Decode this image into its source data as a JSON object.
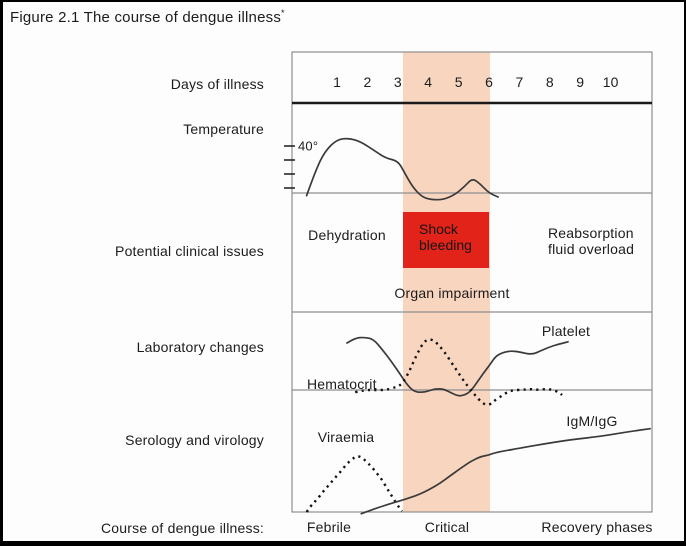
{
  "title": "Figure 2.1 The course of dengue illness",
  "title_superscript": "*",
  "row_labels": {
    "days": "Days of illness",
    "temperature": "Temperature",
    "clinical": "Potential clinical issues",
    "laboratory": "Laboratory changes",
    "serology": "Serology and virology",
    "course": "Course of dengue illness:"
  },
  "days": [
    "1",
    "2",
    "3",
    "4",
    "5",
    "6",
    "7",
    "8",
    "9",
    "10"
  ],
  "clinical": {
    "dehydration": "Dehydration",
    "shock_line1": "Shock",
    "shock_line2": "bleeding",
    "reabsorption_line1": "Reabsorption",
    "reabsorption_line2": "fluid overload",
    "organ": "Organ impairment"
  },
  "laboratory": {
    "platelet": "Platelet",
    "hematocrit": "Hematocrit"
  },
  "serology": {
    "viraemia": "Viraemia",
    "igm_igg": "IgM/IgG"
  },
  "phases": [
    "Febrile",
    "Critical",
    "Recovery phases"
  ],
  "colors": {
    "critical_band": "#f8d5bf",
    "shock_box": "#e2231a",
    "curve": "#3a3a3a",
    "grid_line": "#8f8f8f",
    "dark_line": "#1a1a1a",
    "background": "#fdfdfd",
    "frame": "#000000"
  },
  "chart_data": {
    "type": "line",
    "title": "Figure 2.1 The course of dengue illness",
    "x_axis": {
      "label": "Days of illness",
      "ticks": [
        1,
        2,
        3,
        4,
        5,
        6,
        7,
        8,
        9,
        10
      ]
    },
    "critical_band_days": [
      3.2,
      6.0
    ],
    "phases": [
      {
        "name": "Febrile",
        "days": "1-3"
      },
      {
        "name": "Critical",
        "days": "4-6"
      },
      {
        "name": "Recovery phases",
        "days": "7-10"
      }
    ],
    "legend_position": "inline-labels",
    "grid": false,
    "panels": [
      {
        "name": "Temperature",
        "ylabel": "40°",
        "unit": "degrees C (approximate)",
        "series": [
          {
            "name": "Temperature",
            "style": "solid",
            "x": [
              0,
              0.3,
              0.6,
              1,
              1.4,
              1.8,
              2.2,
              2.6,
              3,
              3.2,
              3.5,
              3.8,
              4.1,
              4.5,
              4.9,
              5.2,
              5.45,
              5.7,
              6,
              6.3
            ],
            "values": [
              36.3,
              38.2,
              39.6,
              40.5,
              40.6,
              40.3,
              39.7,
              39.1,
              38.9,
              38.1,
              36.9,
              36.2,
              36,
              36,
              36.4,
              37,
              37.6,
              37.2,
              36.5,
              36.2
            ]
          }
        ]
      },
      {
        "name": "Laboratory changes",
        "unit": "relative level (0-100, baseline 0)",
        "series": [
          {
            "name": "Platelet",
            "style": "solid",
            "x": [
              1.33,
              1.6,
              1.9,
              2.2,
              2.55,
              2.8,
              3.07,
              3.34,
              3.57,
              3.9,
              4.2,
              4.5,
              4.75,
              5,
              5.2,
              5.4,
              5.6,
              5.8,
              6.03,
              6.2,
              6.4,
              6.7,
              7,
              7.4,
              7.7,
              8,
              8.3,
              8.6
            ],
            "values": [
              84,
              93,
              94,
              91,
              68,
              50,
              29,
              7,
              -4,
              -4,
              2,
              2,
              -5,
              -11,
              -9,
              -2,
              13,
              29,
              45,
              59,
              66,
              70,
              68,
              63,
              70,
              77,
              82,
              86
            ]
          },
          {
            "name": "Hematocrit",
            "style": "dotted",
            "x": [
              1.6,
              1.9,
              2.25,
              2.6,
              2.85,
              3.05,
              3.2,
              3.37,
              3.53,
              3.7,
              3.86,
              4.03,
              4.2,
              4.4,
              4.6,
              4.8,
              5,
              5.2,
              5.4,
              5.57,
              5.74,
              5.9,
              6.07,
              6.2,
              6.4,
              6.6,
              6.8,
              7.1,
              7.35,
              7.6,
              7.9,
              8.1,
              8.3,
              8.4
            ],
            "values": [
              -4,
              0,
              0,
              0,
              4,
              7,
              16,
              32,
              52,
              71,
              86,
              91,
              88,
              77,
              63,
              46,
              30,
              14,
              0,
              -11,
              -21,
              -27,
              -25,
              -18,
              -11,
              -4,
              0,
              0,
              2,
              0,
              2,
              0,
              -4,
              -9
            ]
          }
        ]
      },
      {
        "name": "Serology and virology",
        "unit": "relative level (0-100, baseline 0)",
        "series": [
          {
            "name": "Viraemia",
            "style": "dotted",
            "x": [
              0,
              0.15,
              0.35,
              0.54,
              0.74,
              0.93,
              1.13,
              1.33,
              1.5,
              1.63,
              1.79,
              1.95,
              2.12,
              2.3,
              2.48,
              2.64,
              2.8,
              2.97,
              3.14
            ],
            "values": [
              0,
              8,
              15,
              24,
              32,
              40,
              48,
              57,
              62,
              66,
              65,
              60,
              54,
              46,
              38,
              28,
              19,
              9,
              1
            ]
          },
          {
            "name": "IgM/IgG",
            "style": "solid",
            "x": [
              1.8,
              2.25,
              2.68,
              3.07,
              3.4,
              3.73,
              4.06,
              4.4,
              4.7,
              5.05,
              5.37,
              5.7,
              5.97,
              6.13,
              6.5,
              7,
              7.8,
              8.66,
              9.65,
              10.5,
              11.3
            ],
            "values": [
              -2,
              4,
              9,
              13,
              17,
              21,
              27,
              34,
              42,
              51,
              59,
              65,
              67,
              69,
              72,
              75,
              80,
              85,
              89,
              94,
              98
            ]
          }
        ]
      }
    ]
  }
}
